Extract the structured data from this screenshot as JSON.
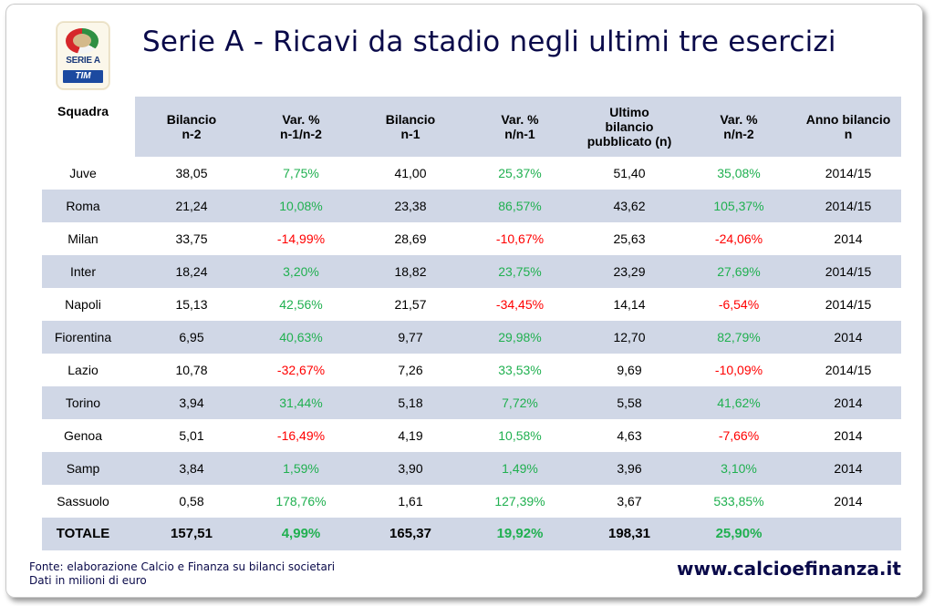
{
  "title": "Serie A - Ricavi da stadio negli ultimi tre esercizi",
  "logo": {
    "top_text": "SERIE A",
    "sponsor": "TIM"
  },
  "table": {
    "columns": [
      "Squadra",
      "Bilancio\nn-2",
      "Var. %\nn-1/n-2",
      "Bilancio\nn-1",
      "Var. %\nn/n-1",
      "Ultimo\nbilancio\npubblicato (n)",
      "Var. %\nn/n-2",
      "Anno bilancio\nn"
    ],
    "rows": [
      {
        "team": "Juve",
        "n2": "38,05",
        "var1": "7,75%",
        "n1": "41,00",
        "var2": "25,37%",
        "n": "51,40",
        "var3": "35,08%",
        "anno": "2014/15"
      },
      {
        "team": "Roma",
        "n2": "21,24",
        "var1": "10,08%",
        "n1": "23,38",
        "var2": "86,57%",
        "n": "43,62",
        "var3": "105,37%",
        "anno": "2014/15"
      },
      {
        "team": "Milan",
        "n2": "33,75",
        "var1": "-14,99%",
        "n1": "28,69",
        "var2": "-10,67%",
        "n": "25,63",
        "var3": "-24,06%",
        "anno": "2014"
      },
      {
        "team": "Inter",
        "n2": "18,24",
        "var1": "3,20%",
        "n1": "18,82",
        "var2": "23,75%",
        "n": "23,29",
        "var3": "27,69%",
        "anno": "2014/15"
      },
      {
        "team": "Napoli",
        "n2": "15,13",
        "var1": "42,56%",
        "n1": "21,57",
        "var2": "-34,45%",
        "n": "14,14",
        "var3": "-6,54%",
        "anno": "2014/15"
      },
      {
        "team": "Fiorentina",
        "n2": "6,95",
        "var1": "40,63%",
        "n1": "9,77",
        "var2": "29,98%",
        "n": "12,70",
        "var3": "82,79%",
        "anno": "2014"
      },
      {
        "team": "Lazio",
        "n2": "10,78",
        "var1": "-32,67%",
        "n1": "7,26",
        "var2": "33,53%",
        "n": "9,69",
        "var3": "-10,09%",
        "anno": "2014/15"
      },
      {
        "team": "Torino",
        "n2": "3,94",
        "var1": "31,44%",
        "n1": "5,18",
        "var2": "7,72%",
        "n": "5,58",
        "var3": "41,62%",
        "anno": "2014"
      },
      {
        "team": "Genoa",
        "n2": "5,01",
        "var1": "-16,49%",
        "n1": "4,19",
        "var2": "10,58%",
        "n": "4,63",
        "var3": "-7,66%",
        "anno": "2014"
      },
      {
        "team": "Samp",
        "n2": "3,84",
        "var1": "1,59%",
        "n1": "3,90",
        "var2": "1,49%",
        "n": "3,96",
        "var3": "3,10%",
        "anno": "2014"
      },
      {
        "team": "Sassuolo",
        "n2": "0,58",
        "var1": "178,76%",
        "n1": "1,61",
        "var2": "127,39%",
        "n": "3,67",
        "var3": "533,85%",
        "anno": "2014"
      }
    ],
    "total": {
      "team": "TOTALE",
      "n2": "157,51",
      "var1": "4,99%",
      "n1": "165,37",
      "var2": "19,92%",
      "n": "198,31",
      "var3": "25,90%",
      "anno": ""
    }
  },
  "colors": {
    "positive": "#20b050",
    "negative": "#ff0000",
    "band": "#d0d7e6",
    "title": "#0a0a4a"
  },
  "footer": {
    "source": "Fonte: elaborazione Calcio e Finanza su bilanci societari",
    "unit": "Dati in milioni di euro",
    "website": "www.calcioefinanza.it"
  }
}
